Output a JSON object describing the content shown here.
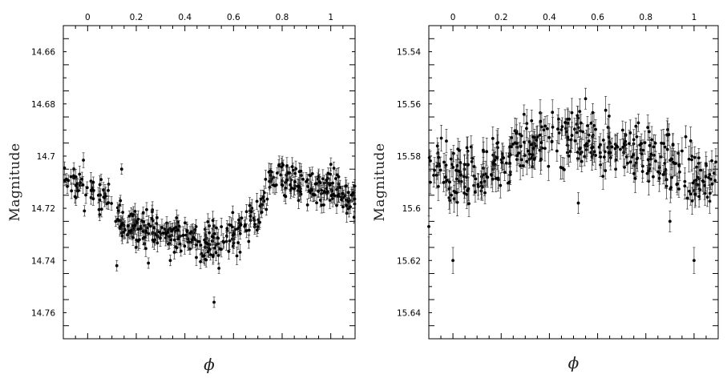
{
  "chart_data": [
    {
      "type": "scatter",
      "title": "",
      "xlabel": "ϕ",
      "ylabel": "Magnitude",
      "xlim": [
        -0.1,
        1.1
      ],
      "ylim": [
        14.77,
        14.65
      ],
      "y_inverted": true,
      "x_ticks": [
        "0",
        "0.2",
        "0.4",
        "0.6",
        "0.8",
        "1"
      ],
      "y_ticks": [
        "14.66",
        "14.68",
        "14.7",
        "14.72",
        "14.74",
        "14.76"
      ],
      "x_tick_values": [
        0,
        0.2,
        0.4,
        0.6,
        0.8,
        1
      ],
      "y_tick_values": [
        14.66,
        14.68,
        14.7,
        14.72,
        14.74,
        14.76
      ],
      "x_tick_labels_position": "top",
      "error_bars": true,
      "marker": "filled-circle",
      "light_curve_anchors": {
        "phase": [
          0.0,
          0.1,
          0.15,
          0.25,
          0.4,
          0.5,
          0.6,
          0.7,
          0.75,
          0.85,
          0.95,
          1.0,
          1.1
        ],
        "magnitude": [
          14.711,
          14.718,
          14.728,
          14.728,
          14.731,
          14.733,
          14.73,
          14.722,
          14.71,
          14.709,
          14.713,
          14.711,
          14.718
        ]
      },
      "notable_points": [
        {
          "x": 0.12,
          "y": 14.742,
          "err": 0.002
        },
        {
          "x": 0.14,
          "y": 14.705,
          "err": 0.002
        },
        {
          "x": 0.25,
          "y": 14.741,
          "err": 0.002
        },
        {
          "x": 0.34,
          "y": 14.74,
          "err": 0.002
        },
        {
          "x": 0.52,
          "y": 14.756,
          "err": 0.002
        },
        {
          "x": 0.54,
          "y": 14.743,
          "err": 0.002
        }
      ],
      "scatter_sd": 0.0035,
      "point_count": 480
    },
    {
      "type": "scatter",
      "title": "",
      "xlabel": "ϕ",
      "ylabel": "Magnitude",
      "xlim": [
        -0.1,
        1.1
      ],
      "ylim": [
        15.65,
        15.53
      ],
      "y_inverted": true,
      "x_ticks": [
        "0",
        "0.2",
        "0.4",
        "0.6",
        "0.8",
        "1"
      ],
      "y_ticks": [
        "15.54",
        "15.56",
        "15.58",
        "15.6",
        "15.62",
        "15.64"
      ],
      "x_tick_values": [
        0,
        0.2,
        0.4,
        0.6,
        0.8,
        1
      ],
      "y_tick_values": [
        15.54,
        15.56,
        15.58,
        15.6,
        15.62,
        15.64
      ],
      "x_tick_labels_position": "top",
      "error_bars": true,
      "marker": "filled-circle",
      "light_curve_anchors": {
        "phase": [
          -0.1,
          0.0,
          0.1,
          0.2,
          0.3,
          0.4,
          0.5,
          0.6,
          0.7,
          0.8,
          0.9,
          1.0,
          1.1
        ],
        "magnitude": [
          15.583,
          15.588,
          15.587,
          15.582,
          15.577,
          15.573,
          15.572,
          15.574,
          15.577,
          15.58,
          15.583,
          15.588,
          15.589
        ]
      },
      "notable_points": [
        {
          "x": 0.0,
          "y": 15.62,
          "err": 0.005
        },
        {
          "x": 1.0,
          "y": 15.62,
          "err": 0.005
        },
        {
          "x": -0.1,
          "y": 15.607,
          "err": 0.004
        },
        {
          "x": 0.52,
          "y": 15.598,
          "err": 0.004
        },
        {
          "x": 0.9,
          "y": 15.605,
          "err": 0.004
        },
        {
          "x": 0.55,
          "y": 15.558,
          "err": 0.004
        }
      ],
      "scatter_sd": 0.0055,
      "point_count": 420
    }
  ]
}
